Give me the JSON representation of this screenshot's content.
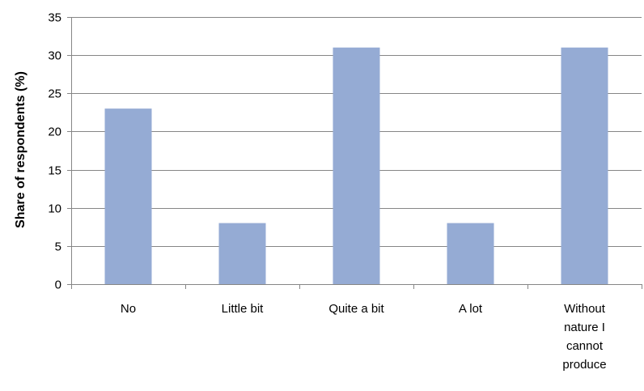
{
  "chart_data": {
    "type": "bar",
    "categories": [
      "No",
      "Little bit",
      "Quite a bit",
      "A lot",
      "Without nature I cannot produce"
    ],
    "category_label_lines": [
      [
        "No"
      ],
      [
        "Little bit"
      ],
      [
        "Quite a bit"
      ],
      [
        "A lot"
      ],
      [
        "Without",
        "nature I",
        "cannot",
        "produce"
      ]
    ],
    "values": [
      23,
      8,
      31,
      8,
      31
    ],
    "title": "",
    "xlabel": "",
    "ylabel": "Share of respondents (%)",
    "ylim": [
      0,
      35
    ],
    "yticks": [
      "0",
      "5",
      "10",
      "15",
      "20",
      "25",
      "30",
      "35"
    ],
    "grid": true,
    "legend": "none",
    "colors": {
      "bar": "#95abd4",
      "grid": "#868686",
      "axis": "#868686"
    }
  }
}
